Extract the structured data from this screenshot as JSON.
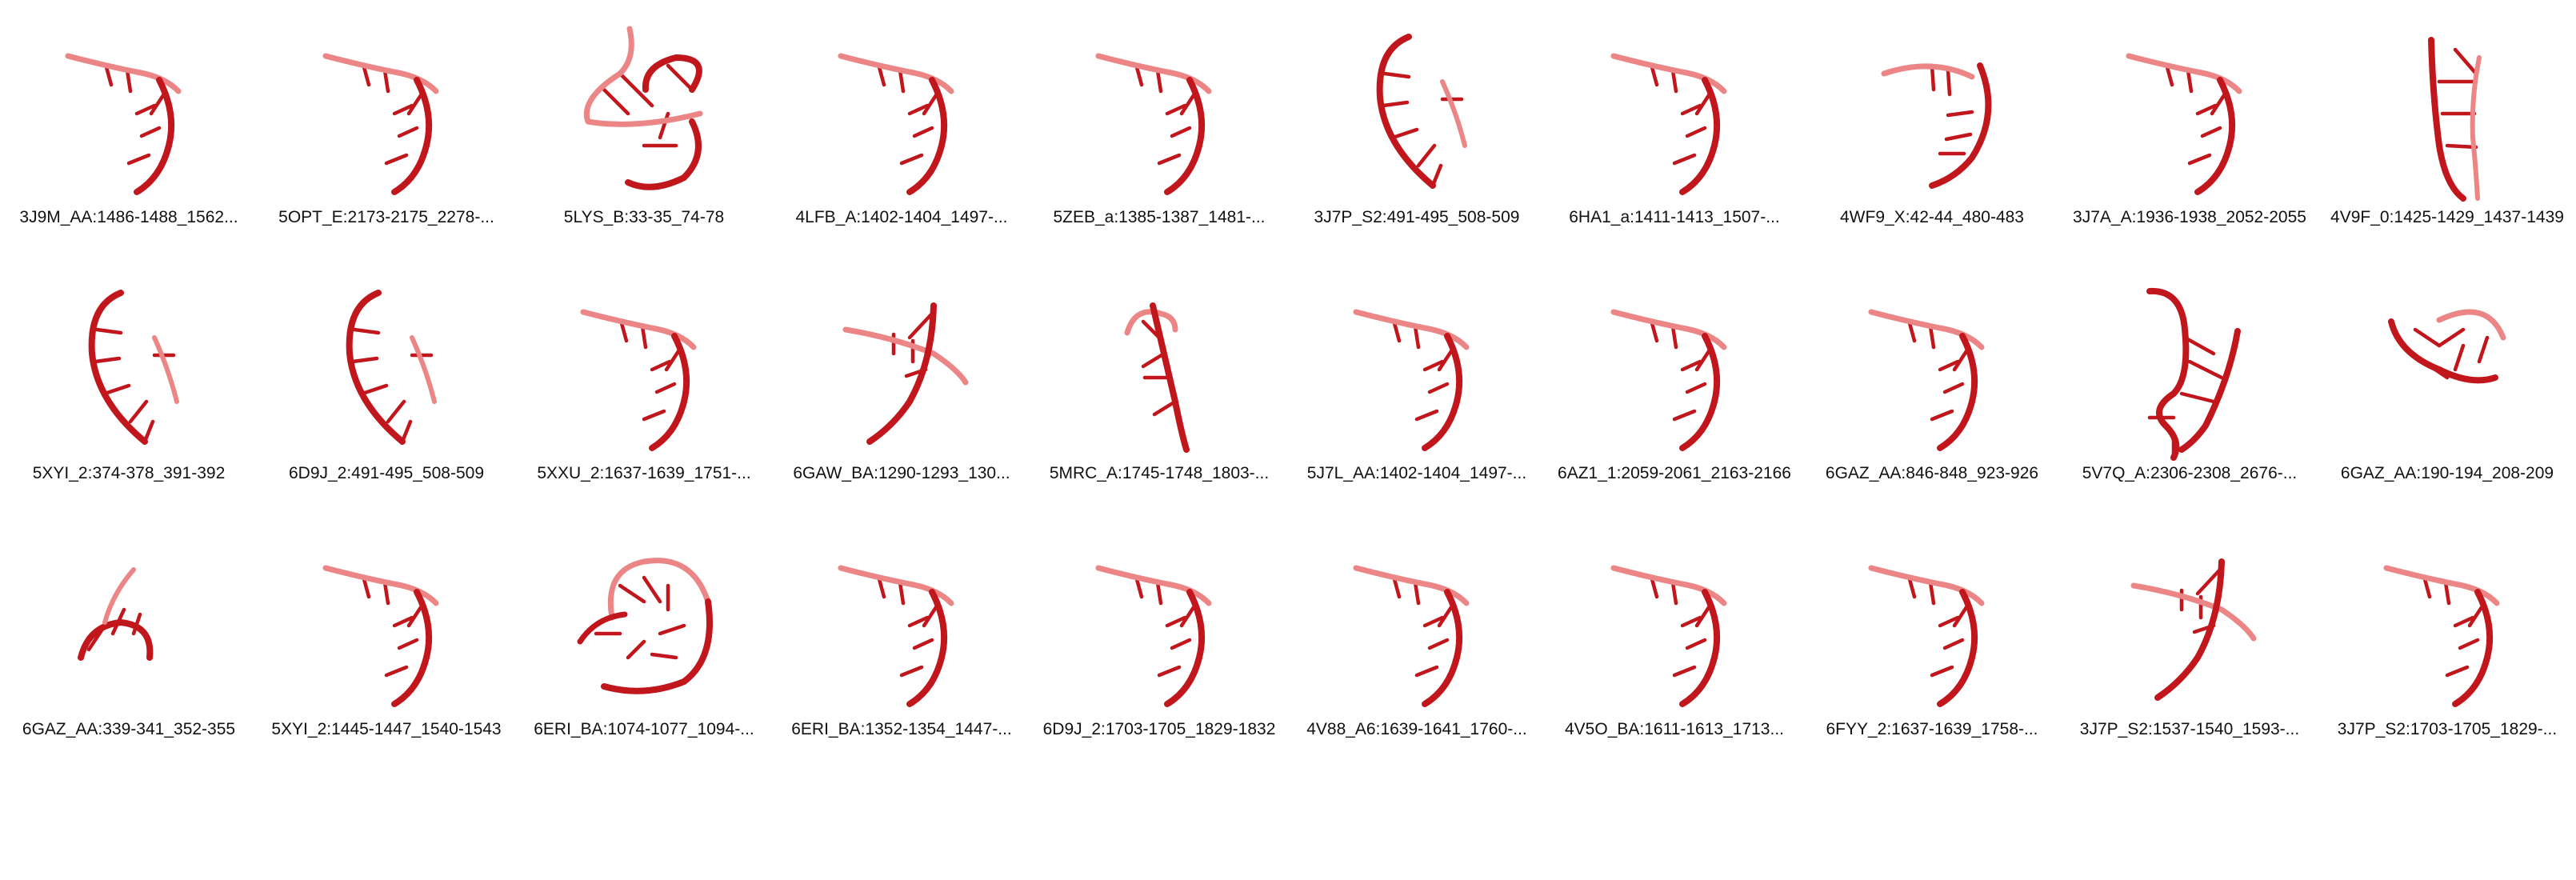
{
  "colors": {
    "backbone_dark": "#c0161c",
    "backbone_light": "#ec8585",
    "background": "#ffffff",
    "caption_text": "#111111"
  },
  "rows": [
    {
      "items": [
        {
          "label": "3J9M_AA:1486-1488_1562...",
          "icon": "rna-motif-3d-structure",
          "shape": "A"
        },
        {
          "label": "5OPT_E:2173-2175_2278-...",
          "icon": "rna-motif-3d-structure",
          "shape": "A"
        },
        {
          "label": "5LYS_B:33-35_74-78",
          "icon": "rna-motif-3d-structure",
          "shape": "E"
        },
        {
          "label": "4LFB_A:1402-1404_1497-...",
          "icon": "rna-motif-3d-structure",
          "shape": "A"
        },
        {
          "label": "5ZEB_a:1385-1387_1481-...",
          "icon": "rna-motif-3d-structure",
          "shape": "A"
        },
        {
          "label": "3J7P_S2:491-495_508-509",
          "icon": "rna-motif-3d-structure",
          "shape": "B"
        },
        {
          "label": "6HA1_a:1411-1413_1507-...",
          "icon": "rna-motif-3d-structure",
          "shape": "A"
        },
        {
          "label": "4WF9_X:42-44_480-483",
          "icon": "rna-motif-3d-structure",
          "shape": "C"
        },
        {
          "label": "3J7A_A:1936-1938_2052-2055",
          "icon": "rna-motif-3d-structure",
          "shape": "A"
        },
        {
          "label": "4V9F_0:1425-1429_1437-1439",
          "icon": "rna-motif-3d-structure",
          "shape": "D"
        }
      ]
    },
    {
      "items": [
        {
          "label": "5XYI_2:374-378_391-392",
          "icon": "rna-motif-3d-structure",
          "shape": "B"
        },
        {
          "label": "6D9J_2:491-495_508-509",
          "icon": "rna-motif-3d-structure",
          "shape": "B"
        },
        {
          "label": "5XXU_2:1637-1639_1751-...",
          "icon": "rna-motif-3d-structure",
          "shape": "A"
        },
        {
          "label": "6GAW_BA:1290-1293_130...",
          "icon": "rna-motif-3d-structure",
          "shape": "F"
        },
        {
          "label": "5MRC_A:1745-1748_1803-...",
          "icon": "rna-motif-3d-structure",
          "shape": "G"
        },
        {
          "label": "5J7L_AA:1402-1404_1497-...",
          "icon": "rna-motif-3d-structure",
          "shape": "A"
        },
        {
          "label": "6AZ1_1:2059-2061_2163-2166",
          "icon": "rna-motif-3d-structure",
          "shape": "A"
        },
        {
          "label": "6GAZ_AA:846-848_923-926",
          "icon": "rna-motif-3d-structure",
          "shape": "A"
        },
        {
          "label": "5V7Q_A:2306-2308_2676-...",
          "icon": "rna-motif-3d-structure",
          "shape": "H"
        },
        {
          "label": "6GAZ_AA:190-194_208-209",
          "icon": "rna-motif-3d-structure",
          "shape": "I"
        }
      ]
    },
    {
      "items": [
        {
          "label": "6GAZ_AA:339-341_352-355",
          "icon": "rna-motif-3d-structure",
          "shape": "J"
        },
        {
          "label": "5XYI_2:1445-1447_1540-1543",
          "icon": "rna-motif-3d-structure",
          "shape": "A"
        },
        {
          "label": "6ERI_BA:1074-1077_1094-...",
          "icon": "rna-motif-3d-structure",
          "shape": "K"
        },
        {
          "label": "6ERI_BA:1352-1354_1447-...",
          "icon": "rna-motif-3d-structure",
          "shape": "A"
        },
        {
          "label": "6D9J_2:1703-1705_1829-1832",
          "icon": "rna-motif-3d-structure",
          "shape": "A"
        },
        {
          "label": "4V88_A6:1639-1641_1760-...",
          "icon": "rna-motif-3d-structure",
          "shape": "A"
        },
        {
          "label": "4V5O_BA:1611-1613_1713...",
          "icon": "rna-motif-3d-structure",
          "shape": "A"
        },
        {
          "label": "6FYY_2:1637-1639_1758-...",
          "icon": "rna-motif-3d-structure",
          "shape": "A"
        },
        {
          "label": "3J7P_S2:1537-1540_1593-...",
          "icon": "rna-motif-3d-structure",
          "shape": "F"
        },
        {
          "label": "3J7P_S2:1703-1705_1829-...",
          "icon": "rna-motif-3d-structure",
          "shape": "A"
        }
      ]
    }
  ]
}
